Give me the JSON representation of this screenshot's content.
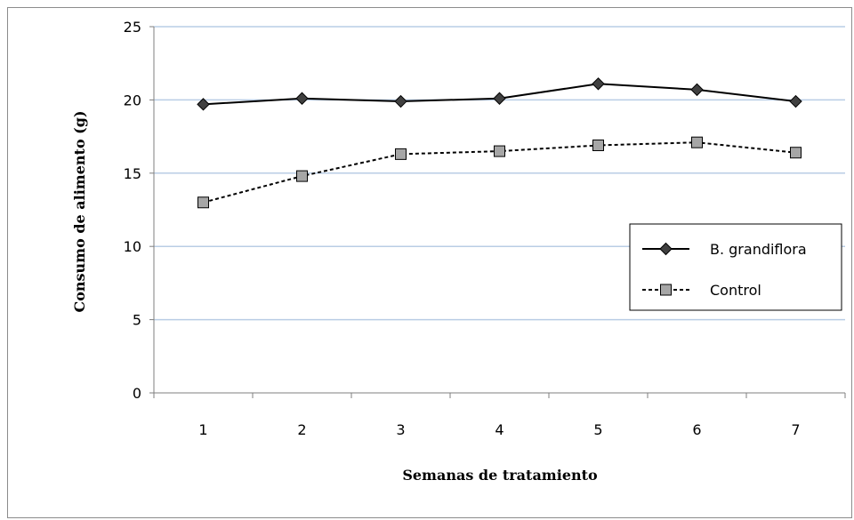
{
  "chart_data": {
    "type": "line",
    "xlabel": "Semanas de tratamiento",
    "ylabel": "Consumo de alimento (g)",
    "categories": [
      "1",
      "2",
      "3",
      "4",
      "5",
      "6",
      "7"
    ],
    "ylim": [
      0,
      25
    ],
    "yticks": [
      "0",
      "5",
      "10",
      "15",
      "20",
      "25"
    ],
    "grid": true,
    "legend_position": "right",
    "series": [
      {
        "name": "B. grandiflora",
        "values": [
          19.7,
          20.1,
          19.9,
          20.1,
          21.1,
          20.7,
          19.9
        ],
        "line_style": "solid",
        "marker": "diamond",
        "color": "#000000",
        "marker_color": "#404040"
      },
      {
        "name": "Control",
        "values": [
          13.0,
          14.8,
          16.3,
          16.5,
          16.9,
          17.1,
          16.4
        ],
        "line_style": "dashed",
        "marker": "square",
        "color": "#000000",
        "marker_color": "#a6a6a6"
      }
    ],
    "gridline_color": "#b9cde5"
  }
}
